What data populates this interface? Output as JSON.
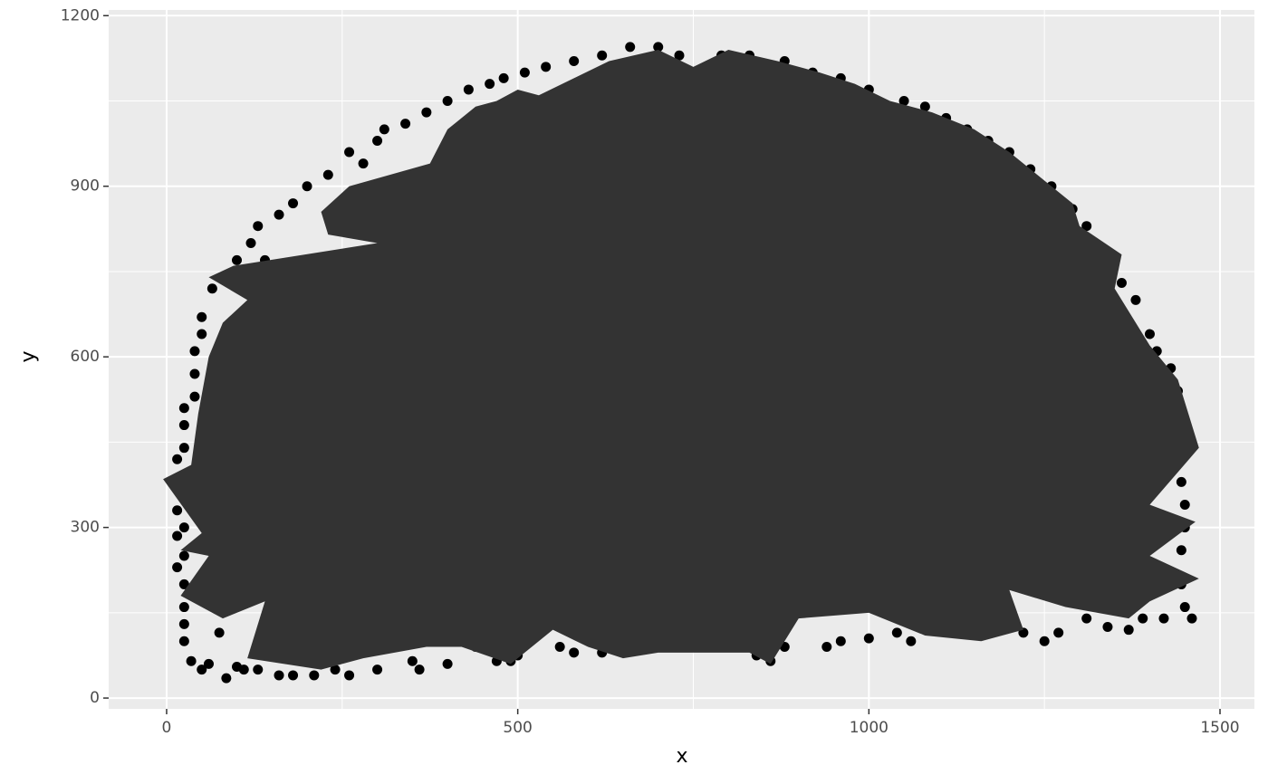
{
  "chart_data": {
    "type": "scatter",
    "x_label": "x",
    "y_label": "y",
    "xlim": [
      -82.5,
      1549
    ],
    "ylim": [
      -19,
      1210
    ],
    "xticks": [
      0,
      500,
      1000,
      1500
    ],
    "yticks": [
      0,
      300,
      600,
      900,
      1200
    ],
    "x_minor_ticks": [
      250,
      750,
      1250
    ],
    "y_minor_ticks": [
      150,
      450,
      750,
      1050
    ],
    "grid": true,
    "point_color": "#000000",
    "polygon_color": "#333333",
    "x": [
      15,
      15,
      15,
      15,
      15,
      25,
      25,
      25,
      25,
      25,
      25,
      25,
      25,
      25,
      40,
      40,
      40,
      50,
      50,
      65,
      80,
      100,
      120,
      130,
      140,
      160,
      180,
      200,
      230,
      260,
      280,
      300,
      310,
      340,
      370,
      400,
      430,
      460,
      480,
      510,
      540,
      580,
      620,
      660,
      700,
      730,
      790,
      830,
      880,
      920,
      960,
      1000,
      1050,
      1080,
      1110,
      1140,
      1170,
      1200,
      1230,
      1260,
      1290,
      1310,
      1330,
      1360,
      1380,
      1400,
      1410,
      1430,
      1440,
      1440,
      1445,
      1445,
      1450,
      1450,
      1445,
      1445,
      1450,
      1460,
      1420,
      1390,
      1370,
      1340,
      1310,
      1270,
      1250,
      1220,
      1180,
      1100,
      1060,
      1040,
      1000,
      960,
      940,
      880,
      860,
      840,
      820,
      780,
      740,
      700,
      660,
      620,
      580,
      560,
      500,
      490,
      470,
      440,
      400,
      360,
      350,
      300,
      260,
      240,
      210,
      180,
      160,
      130,
      110,
      100,
      85,
      60,
      50,
      35,
      75
    ],
    "y": [
      230,
      285,
      330,
      380,
      420,
      100,
      130,
      160,
      200,
      250,
      300,
      440,
      480,
      510,
      530,
      570,
      610,
      640,
      670,
      720,
      740,
      770,
      800,
      830,
      770,
      850,
      870,
      900,
      920,
      960,
      940,
      980,
      1000,
      1010,
      1030,
      1050,
      1070,
      1080,
      1090,
      1100,
      1110,
      1120,
      1130,
      1145,
      1145,
      1130,
      1130,
      1130,
      1120,
      1100,
      1090,
      1070,
      1050,
      1040,
      1020,
      1000,
      980,
      960,
      930,
      900,
      860,
      830,
      790,
      730,
      700,
      640,
      610,
      580,
      540,
      480,
      440,
      380,
      340,
      300,
      260,
      200,
      160,
      140,
      140,
      140,
      120,
      125,
      140,
      115,
      100,
      115,
      120,
      120,
      100,
      115,
      105,
      100,
      90,
      90,
      65,
      75,
      90,
      90,
      90,
      90,
      90,
      80,
      80,
      90,
      75,
      65,
      65,
      90,
      60,
      50,
      65,
      50,
      40,
      50,
      40,
      40,
      40,
      50,
      50,
      55,
      35,
      60,
      50,
      65,
      115
    ],
    "polygon_x": [
      -5,
      35,
      45,
      60,
      80,
      115,
      60,
      95,
      300,
      230,
      220,
      260,
      375,
      400,
      440,
      470,
      500,
      530,
      580,
      630,
      700,
      750,
      800,
      870,
      930,
      980,
      1030,
      1090,
      1150,
      1200,
      1230,
      1290,
      1300,
      1360,
      1350,
      1400,
      1440,
      1470,
      1400,
      1465,
      1400,
      1470,
      1400,
      1370,
      1280,
      1200,
      1220,
      1160,
      1080,
      1000,
      900,
      860,
      830,
      770,
      700,
      650,
      600,
      550,
      490,
      420,
      370,
      280,
      220,
      115,
      140,
      80,
      20,
      60,
      20,
      50
    ],
    "polygon_y": [
      385,
      410,
      500,
      600,
      660,
      700,
      740,
      760,
      800,
      815,
      855,
      900,
      940,
      1000,
      1040,
      1050,
      1070,
      1060,
      1090,
      1120,
      1140,
      1110,
      1140,
      1120,
      1100,
      1080,
      1050,
      1030,
      1000,
      960,
      930,
      870,
      830,
      780,
      720,
      620,
      560,
      440,
      340,
      310,
      250,
      210,
      170,
      140,
      160,
      190,
      120,
      100,
      110,
      150,
      140,
      60,
      80,
      80,
      80,
      70,
      90,
      120,
      60,
      90,
      90,
      70,
      50,
      70,
      170,
      140,
      180,
      250,
      260,
      290
    ]
  }
}
